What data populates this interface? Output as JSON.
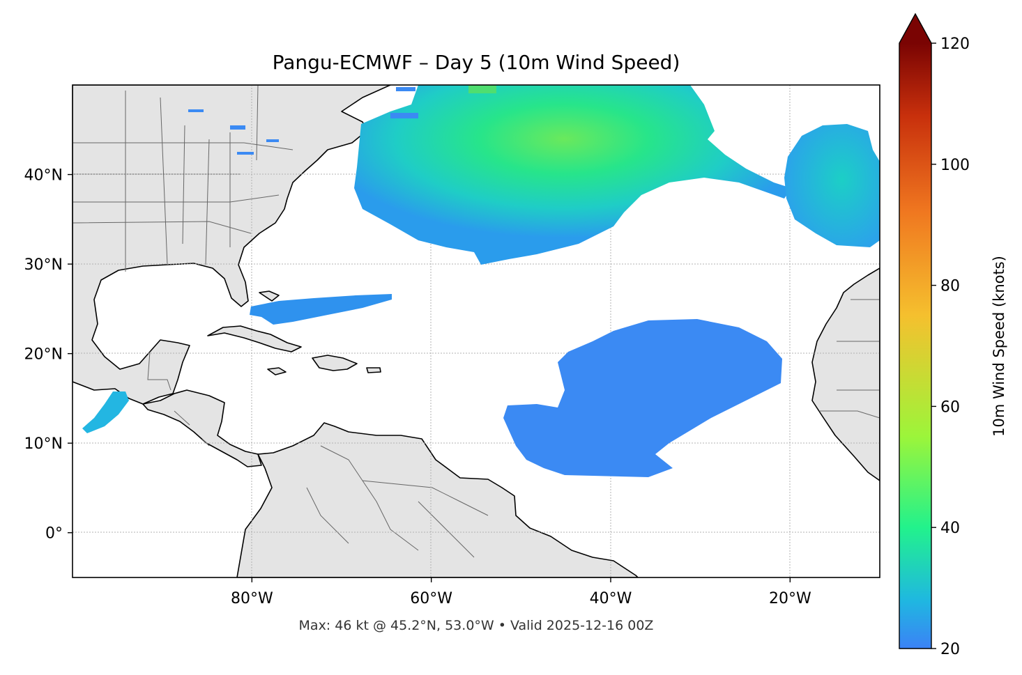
{
  "title": "Pangu-ECMWF – Day 5 (10m Wind Speed)",
  "footer": "Max: 46 kt @ 45.2°N, 53.0°W • Valid 2025-12-16 00Z",
  "map": {
    "projection": "PlateCarree",
    "lon_range": [
      -100,
      -10
    ],
    "lat_range": [
      -5,
      50
    ],
    "gridlines": true,
    "colors": {
      "land": "#e4e4e4",
      "coast": "#000000",
      "borders": "#666666",
      "ocean": "#ffffff"
    }
  },
  "x_ticks": [
    {
      "lon": -80,
      "label": "80°W"
    },
    {
      "lon": -60,
      "label": "60°W"
    },
    {
      "lon": -40,
      "label": "40°W"
    },
    {
      "lon": -20,
      "label": "20°W"
    }
  ],
  "y_ticks": [
    {
      "lat": 40,
      "label": "40°N"
    },
    {
      "lat": 30,
      "label": "30°N"
    },
    {
      "lat": 20,
      "label": "20°N"
    },
    {
      "lat": 10,
      "label": "10°N"
    },
    {
      "lat": 0,
      "label": "0°"
    }
  ],
  "colorbar": {
    "label": "10m Wind Speed (knots)",
    "min": 20,
    "max": 120,
    "extend": "max",
    "ticks": [
      {
        "value": 20,
        "label": "20"
      },
      {
        "value": 40,
        "label": "40"
      },
      {
        "value": 60,
        "label": "60"
      },
      {
        "value": 80,
        "label": "80"
      },
      {
        "value": 100,
        "label": "100"
      },
      {
        "value": 120,
        "label": "120"
      }
    ],
    "colormap_stops": [
      "#3b82f6",
      "#1fc8d4",
      "#22f28c",
      "#9cf53a",
      "#f5c02e",
      "#f07820",
      "#c8300c",
      "#7a0403"
    ],
    "extend_color": "#7a0403"
  },
  "wind_regions": [
    {
      "name": "north-atlantic-wind-swath",
      "speed_kt": 30,
      "max_kt": 46
    },
    {
      "name": "eastern-atlantic-blob",
      "speed_kt": 27
    },
    {
      "name": "bahamas-streak",
      "speed_kt": 22
    },
    {
      "name": "central-atlantic-blob",
      "speed_kt": 21
    },
    {
      "name": "gulf-of-tehuantepec-jet",
      "speed_kt": 25
    }
  ],
  "max_point": {
    "lat": 45.2,
    "lon": -53.0,
    "speed_kt": 46
  }
}
